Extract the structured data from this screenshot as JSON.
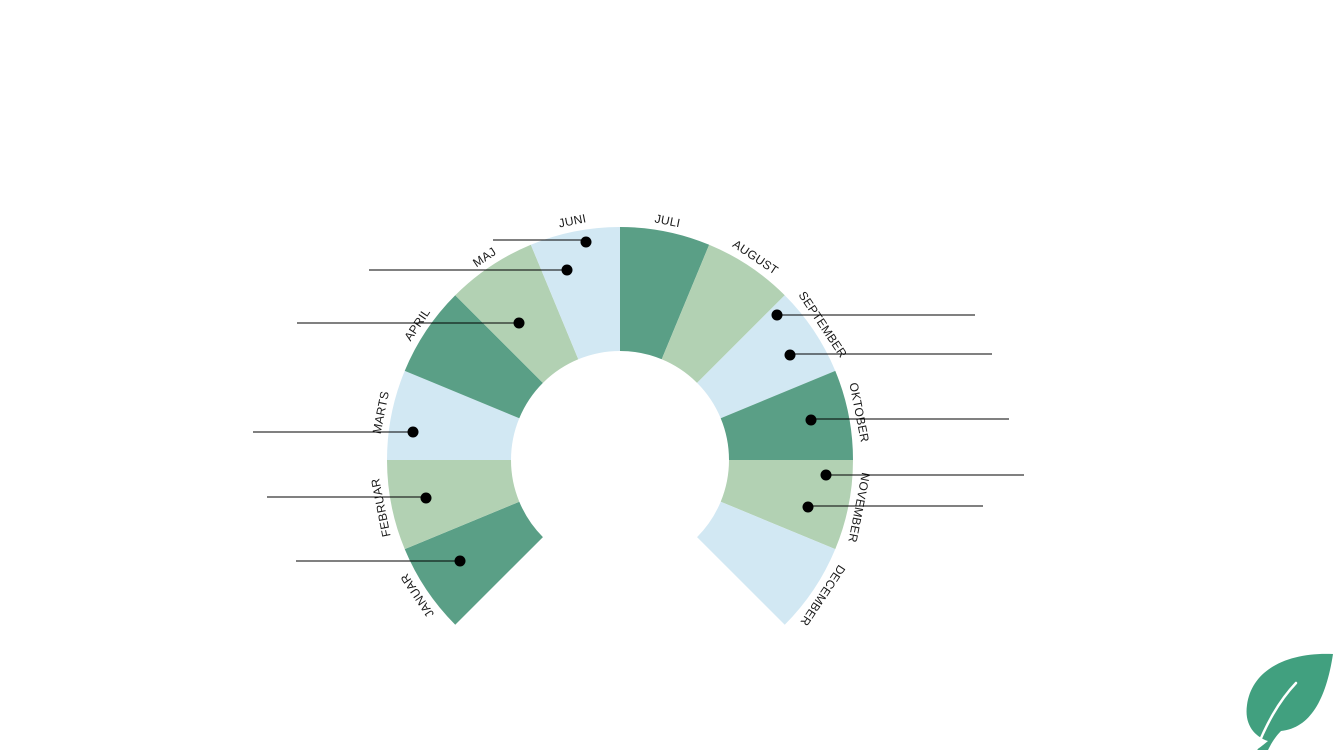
{
  "wheel": {
    "colors": {
      "dark": "#5a9f86",
      "light": "#b2d1b3",
      "blue": "#d2e8f3",
      "logo": "#41a07f"
    },
    "months": [
      {
        "label": "JANUAR",
        "tone": "dark"
      },
      {
        "label": "FEBRUAR",
        "tone": "light"
      },
      {
        "label": "MARTS",
        "tone": "blue"
      },
      {
        "label": "APRIL",
        "tone": "dark"
      },
      {
        "label": "MAJ",
        "tone": "light"
      },
      {
        "label": "JUNI",
        "tone": "blue"
      },
      {
        "label": "JULI",
        "tone": "dark"
      },
      {
        "label": "AUGUST",
        "tone": "light"
      },
      {
        "label": "SEPTEMBER",
        "tone": "blue"
      },
      {
        "label": "OKTOBER",
        "tone": "dark"
      },
      {
        "label": "NOVEMBER",
        "tone": "light"
      },
      {
        "label": "DECEMBER",
        "tone": "blue"
      }
    ]
  },
  "logo_icon": "leaf-icon"
}
